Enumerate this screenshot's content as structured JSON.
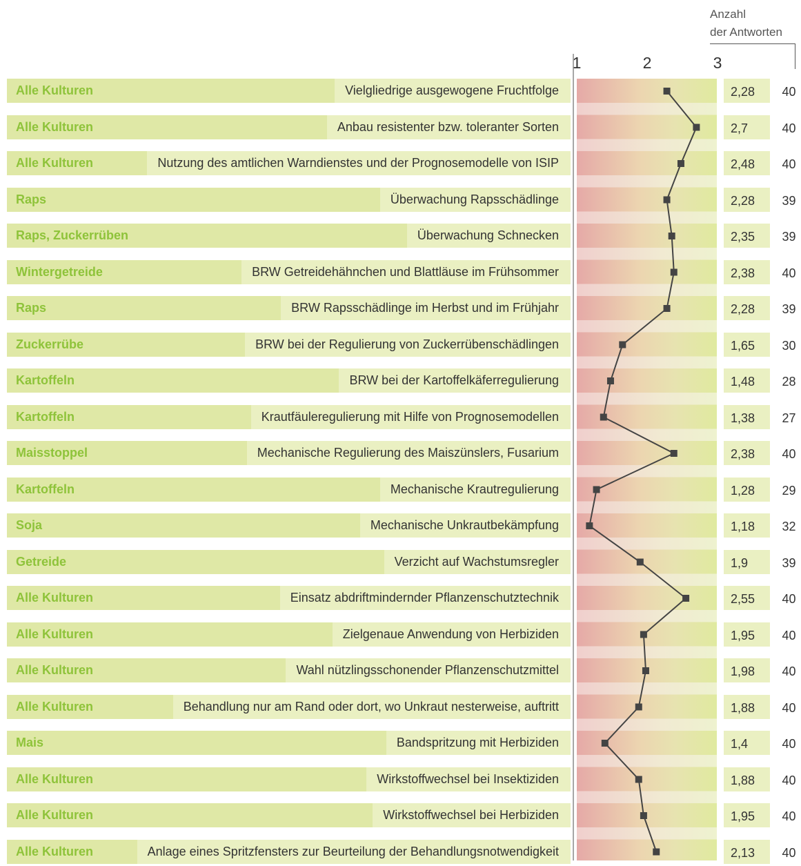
{
  "header": {
    "anzahl_label_1": "Anzahl",
    "anzahl_label_2": "der Antworten"
  },
  "colors": {
    "crop_text": "#8ec33a",
    "row_bg": "#eaf0c2",
    "line": "#444444",
    "low": "#e5a9a7",
    "high": "#e0ea9f"
  },
  "chart_data": {
    "type": "line",
    "orientation": "horizontal",
    "xlim": [
      1,
      3
    ],
    "x_ticks": [
      "1",
      "2",
      "3"
    ],
    "rows": [
      {
        "crop": "Alle Kulturen",
        "measure": "Vielgliedrige ausgewogene Fruchtfolge",
        "value": 2.28,
        "value_label": "2,28",
        "count": "40"
      },
      {
        "crop": "Alle Kulturen",
        "measure": "Anbau resistenter bzw. toleranter Sorten",
        "value": 2.7,
        "value_label": "2,7",
        "count": "40"
      },
      {
        "crop": "Alle Kulturen",
        "measure": "Nutzung des amtlichen Warndienstes und der Prognosemodelle von ISIP",
        "value": 2.48,
        "value_label": "2,48",
        "count": "40"
      },
      {
        "crop": "Raps",
        "measure": "Überwachung Rapsschädlinge",
        "value": 2.28,
        "value_label": "2,28",
        "count": "39"
      },
      {
        "crop": "Raps, Zuckerrüben",
        "measure": "Überwachung Schnecken",
        "value": 2.35,
        "value_label": "2,35",
        "count": "39"
      },
      {
        "crop": "Wintergetreide",
        "measure": "BRW Getreidehähnchen und Blattläuse im Frühsommer",
        "value": 2.38,
        "value_label": "2,38",
        "count": "40"
      },
      {
        "crop": "Raps",
        "measure": "BRW Rapsschädlinge im Herbst und im Frühjahr",
        "value": 2.28,
        "value_label": "2,28",
        "count": "39"
      },
      {
        "crop": "Zuckerrübe",
        "measure": "BRW bei der Regulierung von Zuckerrübenschädlingen",
        "value": 1.65,
        "value_label": "1,65",
        "count": "30"
      },
      {
        "crop": "Kartoffeln",
        "measure": "BRW bei der Kartoffelkäferregulierung",
        "value": 1.48,
        "value_label": "1,48",
        "count": "28"
      },
      {
        "crop": "Kartoffeln",
        "measure": "Krautfäuleregulierung mit Hilfe von Prognosemodellen",
        "value": 1.38,
        "value_label": "1,38",
        "count": "27"
      },
      {
        "crop": "Maisstoppel",
        "measure": "Mechanische Regulierung des Maiszünslers, Fusarium",
        "value": 2.38,
        "value_label": "2,38",
        "count": "40"
      },
      {
        "crop": "Kartoffeln",
        "measure": "Mechanische Krautregulierung",
        "value": 1.28,
        "value_label": "1,28",
        "count": "29"
      },
      {
        "crop": "Soja",
        "measure": "Mechanische Unkrautbekämpfung",
        "value": 1.18,
        "value_label": "1,18",
        "count": "32"
      },
      {
        "crop": "Getreide",
        "measure": "Verzicht auf Wachstumsregler",
        "value": 1.9,
        "value_label": "1,9",
        "count": "39"
      },
      {
        "crop": "Alle Kulturen",
        "measure": "Einsatz abdriftmindernder Pflanzenschutztechnik",
        "value": 2.55,
        "value_label": "2,55",
        "count": "40"
      },
      {
        "crop": "Alle Kulturen",
        "measure": "Zielgenaue Anwendung von Herbiziden",
        "value": 1.95,
        "value_label": "1,95",
        "count": "40"
      },
      {
        "crop": "Alle Kulturen",
        "measure": "Wahl nützlingsschonender Pflanzenschutzmittel",
        "value": 1.98,
        "value_label": "1,98",
        "count": "40"
      },
      {
        "crop": "Alle Kulturen",
        "measure": "Behandlung nur am Rand oder dort, wo Unkraut nesterweise, auftritt",
        "value": 1.88,
        "value_label": "1,88",
        "count": "40"
      },
      {
        "crop": "Mais",
        "measure": "Bandspritzung mit Herbiziden",
        "value": 1.4,
        "value_label": "1,4",
        "count": "40"
      },
      {
        "crop": "Alle Kulturen",
        "measure": "Wirkstoffwechsel bei Insektiziden",
        "value": 1.88,
        "value_label": "1,88",
        "count": "40"
      },
      {
        "crop": "Alle Kulturen",
        "measure": "Wirkstoffwechsel bei Herbiziden",
        "value": 1.95,
        "value_label": "1,95",
        "count": "40"
      },
      {
        "crop": "Alle Kulturen",
        "measure": "Anlage eines Spritzfensters zur Beurteilung der Behandlungsnotwendigkeit",
        "value": 2.13,
        "value_label": "2,13",
        "count": "40"
      }
    ]
  }
}
